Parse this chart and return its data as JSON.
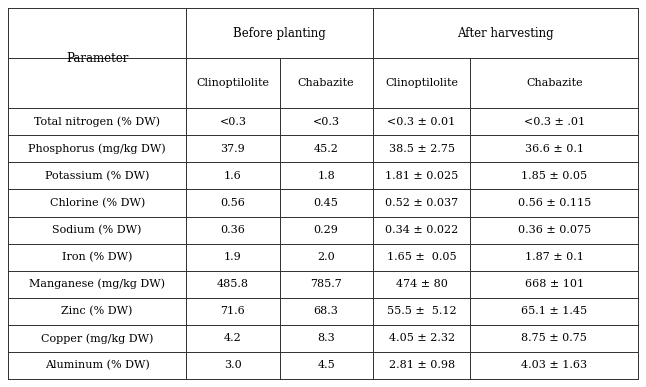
{
  "col_headers_row1_before": "Before planting",
  "col_headers_row1_after": "After harvesting",
  "col_headers_row2": [
    "Clinoptilolite",
    "Chabazite",
    "Clinoptilolite",
    "Chabazite"
  ],
  "param_header": "Parameter",
  "rows": [
    [
      "Total nitrogen (% DW)",
      "<0.3",
      "<0.3",
      "<0.3 ± 0.01",
      "<0.3 ± .01"
    ],
    [
      "Phosphorus (mg/kg DW)",
      "37.9",
      "45.2",
      "38.5 ± 2.75",
      "36.6 ± 0.1"
    ],
    [
      "Potassium (% DW)",
      "1.6",
      "1.8",
      "1.81 ± 0.025",
      "1.85 ± 0.05"
    ],
    [
      "Chlorine (% DW)",
      "0.56",
      "0.45",
      "0.52 ± 0.037",
      "0.56 ± 0.115"
    ],
    [
      "Sodium (% DW)",
      "0.36",
      "0.29",
      "0.34 ± 0.022",
      "0.36 ± 0.075"
    ],
    [
      "Iron (% DW)",
      "1.9",
      "2.0",
      "1.65 ±  0.05",
      "1.87 ± 0.1"
    ],
    [
      "Manganese (mg/kg DW)",
      "485.8",
      "785.7",
      "474 ± 80",
      "668 ± 101"
    ],
    [
      "Zinc (% DW)",
      "71.6",
      "68.3",
      "55.5 ±  5.12",
      "65.1 ± 1.45"
    ],
    [
      "Copper (mg/kg DW)",
      "4.2",
      "8.3",
      "4.05 ± 2.32",
      "8.75 ± 0.75"
    ],
    [
      "Aluminum (% DW)",
      "3.0",
      "4.5",
      "2.81 ± 0.98",
      "4.03 ± 1.63"
    ]
  ],
  "bg_color": "#ffffff",
  "text_color": "#000000",
  "line_color": "#2f2f2f",
  "font_size": 8.0,
  "header_font_size": 8.5
}
